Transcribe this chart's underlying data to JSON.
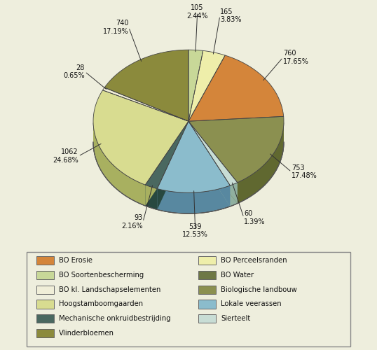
{
  "sizes": [
    105,
    165,
    760,
    753,
    60,
    539,
    93,
    1062,
    28,
    740
  ],
  "percents_display": [
    2.44,
    3.83,
    17.65,
    17.48,
    1.39,
    12.53,
    2.16,
    24.68,
    0.65,
    17.19
  ],
  "absolute_display": [
    105,
    165,
    760,
    753,
    60,
    539,
    93,
    1062,
    28,
    740
  ],
  "colors_top": [
    "#C8D898",
    "#EEEEAA",
    "#D4853A",
    "#8B9050",
    "#C8DDD5",
    "#8BBCCC",
    "#4A6860",
    "#D8DC90",
    "#F0EED8",
    "#8B8A3C"
  ],
  "colors_side": [
    "#A0B870",
    "#C8C878",
    "#A06020",
    "#606830",
    "#90B0A0",
    "#5888A0",
    "#284840",
    "#A8B060",
    "#C8C8A8",
    "#606020"
  ],
  "background_color": "#EEEEDD",
  "legend_box_color": "#F0EED8",
  "legend_col1": [
    [
      "BO Erosie",
      "#D4853A"
    ],
    [
      "BO Soortenbescherming",
      "#C8D898"
    ],
    [
      "BO kl. Landschapselementen",
      "#F0EED8"
    ],
    [
      "Hoogstamboomgaarden",
      "#D8DC90"
    ],
    [
      "Mechanische onkruidbestrijding",
      "#4A6860"
    ],
    [
      "Vlinderbloemen",
      "#8B8A3C"
    ]
  ],
  "legend_col2": [
    [
      "BO Perceelsranden",
      "#EEEEAA"
    ],
    [
      "BO Water",
      "#6E7845"
    ],
    [
      "Biologische landbouw",
      "#8B9050"
    ],
    [
      "Lokale veerassen",
      "#8BBCCC"
    ],
    [
      "Sierteelt",
      "#C8DDD5"
    ]
  ]
}
